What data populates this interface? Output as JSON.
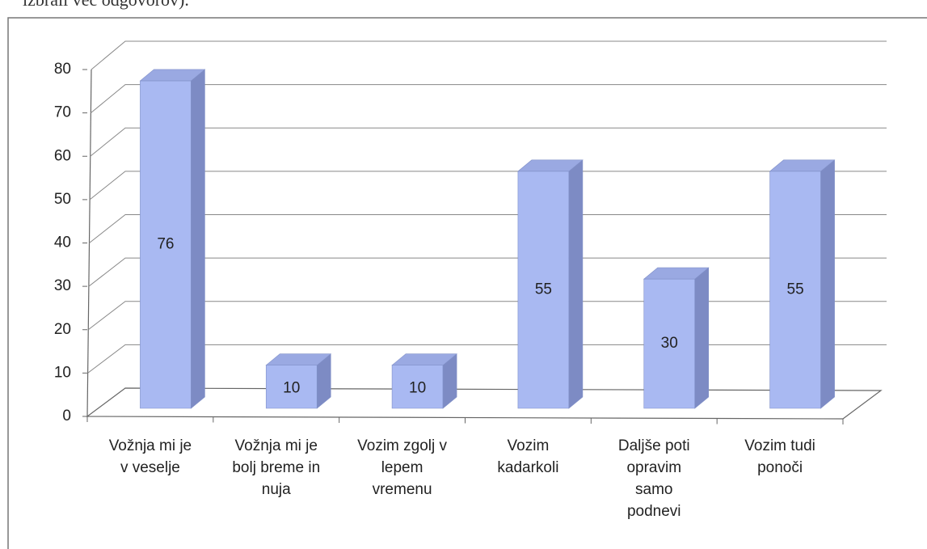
{
  "note": "izbrali več odgovorov).",
  "chart_data": {
    "type": "bar3d",
    "categories": [
      "Vožnja mi je\nv veselje",
      "Vožnja mi je\nbolj breme in\nnuja",
      "Vozim zgolj v\nlepem\nvremenu",
      "Vozim\nkadarkoli",
      "Daljše poti\nopravim\nsamo\npodnevi",
      "Vozim tudi\nponoči"
    ],
    "values": [
      76,
      10,
      10,
      55,
      30,
      55
    ],
    "color": "#a9b9f2",
    "ylim": [
      0,
      80
    ],
    "yticks": [
      0,
      10,
      20,
      30,
      40,
      50,
      60,
      70,
      80
    ],
    "grid": true
  }
}
